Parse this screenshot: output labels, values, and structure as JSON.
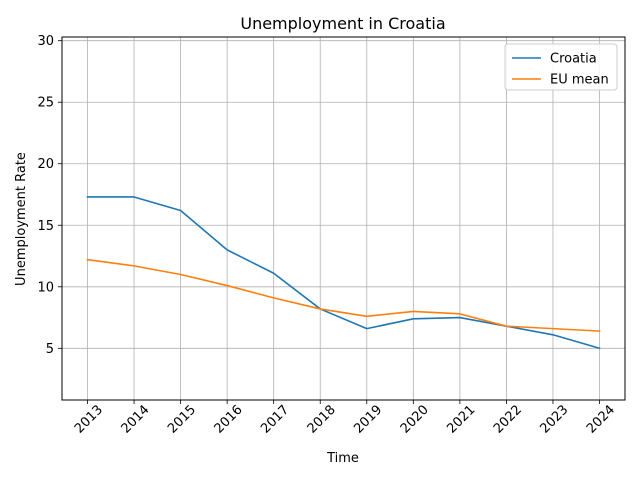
{
  "chart_data": {
    "type": "line",
    "title": "Unemployment in Croatia",
    "xlabel": "Time",
    "ylabel": "Unemployment Rate",
    "categories": [
      "2013",
      "2014",
      "2015",
      "2016",
      "2017",
      "2018",
      "2019",
      "2020",
      "2021",
      "2022",
      "2023",
      "2024"
    ],
    "series": [
      {
        "name": "Croatia",
        "color": "#1f77b4",
        "values": [
          17.3,
          17.3,
          16.2,
          13.0,
          11.1,
          8.2,
          6.6,
          7.4,
          7.5,
          6.8,
          6.1,
          5.0
        ]
      },
      {
        "name": "EU mean",
        "color": "#ff7f0e",
        "values": [
          12.2,
          11.7,
          11.0,
          10.1,
          9.1,
          8.2,
          7.6,
          8.0,
          7.8,
          6.8,
          6.6,
          6.4
        ]
      }
    ],
    "ylim": [
      0.8,
      30.3
    ],
    "yticks": [
      5,
      10,
      15,
      20,
      25,
      30
    ],
    "grid": true,
    "legend": "upper right"
  }
}
